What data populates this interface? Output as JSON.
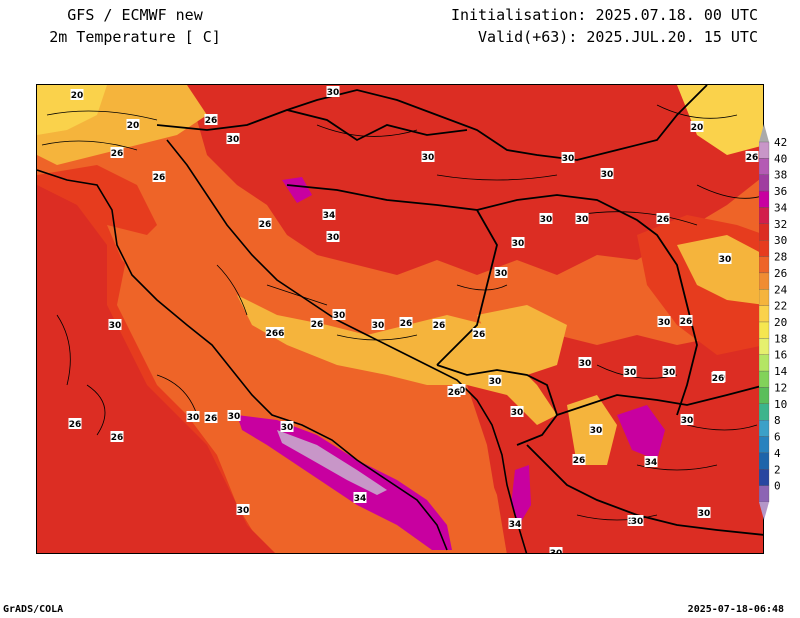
{
  "header": {
    "model": "GFS / ECMWF new",
    "variable": "2m Temperature [ C]",
    "init": "Initialisation: 2025.07.18. 00 UTC",
    "valid": "Valid(+63): 2025.JUL.20. 15 UTC"
  },
  "footer": {
    "credit": "GrADS/COLA",
    "timestamp": "2025-07-18-06:48"
  },
  "colorbar": {
    "levels": [
      "42",
      "40",
      "38",
      "36",
      "34",
      "32",
      "30",
      "28",
      "26",
      "24",
      "22",
      "20",
      "18",
      "16",
      "14",
      "12",
      "10",
      "8",
      "6",
      "4",
      "2",
      "0"
    ],
    "colors": [
      "#c896c8",
      "#b45ab4",
      "#a03ca0",
      "#c800a0",
      "#d21e4b",
      "#dc2d23",
      "#e63c1e",
      "#ee6428",
      "#f08c32",
      "#f5b43c",
      "#fad24b",
      "#f5e650",
      "#e6f06e",
      "#b4e664",
      "#82d25a",
      "#5abe5a",
      "#3cb48c",
      "#3ca0c8",
      "#2882be",
      "#1e64aa",
      "#2846a0",
      "#8c64b4"
    ],
    "top_arrow_color": "#aaaaaa",
    "bottom_arrow_color": "#b496c8"
  },
  "contour_labels": [
    {
      "text": "20"
    },
    {
      "text": "30"
    },
    {
      "text": "20"
    },
    {
      "text": "26"
    },
    {
      "text": "30"
    },
    {
      "text": "26"
    },
    {
      "text": "26"
    },
    {
      "text": "30"
    },
    {
      "text": "30"
    },
    {
      "text": "30"
    },
    {
      "text": "20"
    },
    {
      "text": "26"
    },
    {
      "text": "34"
    },
    {
      "text": "30"
    },
    {
      "text": "30"
    },
    {
      "text": "30"
    },
    {
      "text": "26"
    },
    {
      "text": "26"
    },
    {
      "text": "30"
    },
    {
      "text": "30"
    },
    {
      "text": "30"
    },
    {
      "text": "30"
    },
    {
      "text": "30"
    },
    {
      "text": "266"
    },
    {
      "text": "26"
    },
    {
      "text": "30"
    },
    {
      "text": "30"
    },
    {
      "text": "26"
    },
    {
      "text": "26"
    },
    {
      "text": "26"
    },
    {
      "text": "30"
    },
    {
      "text": "30"
    },
    {
      "text": "30"
    },
    {
      "text": "26"
    },
    {
      "text": "30"
    },
    {
      "text": "30"
    },
    {
      "text": "26"
    },
    {
      "text": "26"
    },
    {
      "text": "26"
    },
    {
      "text": "30"
    },
    {
      "text": "26"
    },
    {
      "text": "30"
    },
    {
      "text": "34"
    },
    {
      "text": "26"
    },
    {
      "text": "30"
    },
    {
      "text": "30"
    },
    {
      "text": "26"
    },
    {
      "text": "30"
    },
    {
      "text": "34"
    },
    {
      "text": "30"
    },
    {
      "text": "34"
    },
    {
      "text": "30"
    },
    {
      "text": "34"
    },
    {
      "text": "30"
    },
    {
      "text": "30"
    },
    {
      "text": "30"
    },
    {
      "text": "30"
    }
  ]
}
